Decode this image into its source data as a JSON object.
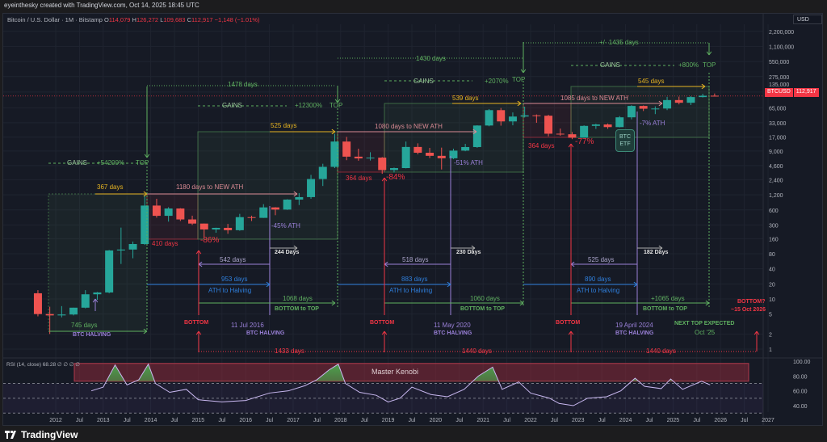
{
  "header": {
    "credit": "eyeinthesky created with TradingView.com, Oct 14, 2025 18:45 UTC"
  },
  "legend": {
    "symbol": "Bitcoin / U.S. Dollar · 1M · Bitstamp",
    "o_label": "O",
    "o": "114,079",
    "h_label": "H",
    "h": "126,272",
    "l_label": "L",
    "l": "109,683",
    "c_label": "C",
    "c": "112,917",
    "change": "−1,148 (−1.01%)"
  },
  "currency": "USD",
  "price_tag": {
    "symbol": "BTCUSD",
    "price": "112,917"
  },
  "rsi": {
    "title": "RSI (14, close) 68.28 ∅ ∅ ∅ ∅",
    "zone_label": "Master Kenobi",
    "axis": [
      "100.00",
      "80.00",
      "60.00",
      "40.00"
    ]
  },
  "footer": {
    "brand": "TradingView"
  },
  "colors": {
    "up": "#26a69a",
    "down": "#ef5350",
    "green": "#5fb060",
    "yellow": "#e6b422",
    "pink": "#d98a93",
    "red": "#f23645",
    "purple": "#9a80d8",
    "blue": "#2f7fdc",
    "rsi_line": "#c9b8f0"
  },
  "annotations": {
    "c1_gains": "GAINS",
    "c1_gain_pct": "+54200%",
    "c1_top": "TOP",
    "c1_cycle_days": "1478 days",
    "c1_run_days": "367 days",
    "c1_ath_days": "1180 days to NEW ATH",
    "c1_bear_days": "410 days",
    "c1_drawdown": "-86%",
    "c1_halving_days": "745 days",
    "c1_halving": "BTC HALVING",
    "c2_ath_pct": "-45% ATH",
    "c2_post_days": "244 Days",
    "c2_bottom_halving": "542 days",
    "c2_ath_halving_days": "953 days",
    "c2_ath_halving": "ATH to Halving",
    "c2_b2t_days": "1068 days",
    "c2_b2t": "BOTTOM to TOP",
    "c2_bottom": "BOTTOM",
    "c2_halving_date": "11 Jul 2016",
    "c2_halving": "BTC HALVING",
    "c2_bottom_days": "1433 days",
    "c2_gains": "GAINS",
    "c2_gain_pct": "+12300%",
    "c2_top": "TOP",
    "c2_run_days": "525 days",
    "c3_cycle_days": "1430 days",
    "c3_gains": "GAINS",
    "c3_gain_pct": "+2070%",
    "c3_top": "TOP",
    "c3_run_days": "539 days",
    "c3_ath_days": "1080 days to NEW ATH",
    "c3_bear_days": "364 days",
    "c3_drawdown": "-84%",
    "c3_ath_pct": "-51% ATH",
    "c3_post_days": "230 Days",
    "c3_bottom_halving": "518 days",
    "c3_ath_halving_days": "883 days",
    "c3_ath_halving": "ATH to Halving",
    "c3_b2t_days": "1060 days",
    "c3_b2t": "BOTTOM to TOP",
    "c3_bottom": "BOTTOM",
    "c3_halving_date": "11 May 2020",
    "c3_halving": "BTC HALVING",
    "c3_bottom_days": "1440 days",
    "c4_cycle_days": "+/- 1435 days",
    "c4_gains": "GAINS",
    "c4_gain_pct": "+800%",
    "c4_top": "TOP",
    "c4_run_days": "545 days",
    "c4_ath_days": "1085 days to NEW ATH",
    "c4_bear_days": "364 days",
    "c4_drawdown": "-77%",
    "c4_etf": "BTC ETF",
    "c4_ath_pct": "-7% ATH",
    "c4_post_days": "182 Days",
    "c4_bottom_halving": "525 days",
    "c4_ath_halving_days": "890 days",
    "c4_ath_halving": "ATH to Halving",
    "c4_b2t_days": "+1065 days",
    "c4_b2t": "BOTTOM to TOP",
    "c4_bottom": "BOTTOM",
    "c4_halving_date": "19 April 2024",
    "c4_halving": "BTC HALVING",
    "c4_next_top": "NEXT TOP EXPECTED",
    "c4_next_top_date": "Oct '25",
    "c4_bottom_days": "1440 days",
    "c5_bottom": "BOTTOM?",
    "c5_bottom_date": "~15 Oct 2026"
  },
  "chart_data": {
    "type": "candlestick",
    "title": "Bitcoin / U.S. Dollar · 1M · Bitstamp",
    "y_scale": "log",
    "ylim": [
      1,
      2200000
    ],
    "y_ticks": [
      "2,200,000",
      "1,100,000",
      "550,000",
      "275,000",
      "135,000",
      "65,000",
      "33,000",
      "17,000",
      "9,000",
      "4,600",
      "2,400",
      "1,200",
      "600",
      "300",
      "160",
      "80",
      "40",
      "20",
      "10",
      "5",
      "2",
      "1"
    ],
    "y_tick_values": [
      2200000,
      1100000,
      550000,
      275000,
      135000,
      65000,
      33000,
      17000,
      9000,
      4600,
      2400,
      1200,
      600,
      300,
      160,
      80,
      40,
      20,
      10,
      5,
      2,
      1
    ],
    "x_ticks": [
      "2012",
      "Jul",
      "2013",
      "Jul",
      "2014",
      "Jul",
      "2015",
      "Jul",
      "2016",
      "Jul",
      "2017",
      "Jul",
      "2018",
      "Jul",
      "2019",
      "Jul",
      "2020",
      "Jul",
      "2021",
      "Jul",
      "2022",
      "Jul",
      "2023",
      "Jul",
      "2024",
      "Jul",
      "2025",
      "Jul",
      "2026",
      "Jul",
      "2027"
    ],
    "xlim": [
      2011.4,
      2027.3
    ],
    "grid": true,
    "last_price": 112917,
    "candles": [
      {
        "t": "2011-Q3",
        "o": 13,
        "h": 15,
        "l": 4.5,
        "c": 5
      },
      {
        "t": "2011-Q4",
        "o": 5,
        "h": 7,
        "l": 2,
        "c": 4.7
      },
      {
        "t": "2012-Q1",
        "o": 4.7,
        "h": 7.2,
        "l": 4.3,
        "c": 4.9
      },
      {
        "t": "2012-Q2",
        "o": 4.9,
        "h": 6.7,
        "l": 4.7,
        "c": 6.7
      },
      {
        "t": "2012-Q3",
        "o": 6.7,
        "h": 15,
        "l": 6.5,
        "c": 12.4
      },
      {
        "t": "2012-Q4",
        "o": 12.4,
        "h": 13.8,
        "l": 9.6,
        "c": 13.5
      },
      {
        "t": "2013-Q1",
        "o": 13.5,
        "h": 95,
        "l": 13,
        "c": 93
      },
      {
        "t": "2013-Q2",
        "o": 93,
        "h": 266,
        "l": 50,
        "c": 97
      },
      {
        "t": "2013-Q3",
        "o": 97,
        "h": 140,
        "l": 65,
        "c": 125
      },
      {
        "t": "2013-Q4",
        "o": 125,
        "h": 1163,
        "l": 120,
        "c": 732
      },
      {
        "t": "2014-Q1",
        "o": 732,
        "h": 1000,
        "l": 420,
        "c": 457
      },
      {
        "t": "2014-Q2",
        "o": 457,
        "h": 680,
        "l": 350,
        "c": 640
      },
      {
        "t": "2014-Q3",
        "o": 640,
        "h": 650,
        "l": 360,
        "c": 387
      },
      {
        "t": "2014-Q4",
        "o": 387,
        "h": 460,
        "l": 300,
        "c": 320
      },
      {
        "t": "2015-Q1",
        "o": 320,
        "h": 320,
        "l": 170,
        "c": 244
      },
      {
        "t": "2015-Q2",
        "o": 244,
        "h": 265,
        "l": 210,
        "c": 263
      },
      {
        "t": "2015-Q3",
        "o": 263,
        "h": 315,
        "l": 200,
        "c": 236
      },
      {
        "t": "2015-Q4",
        "o": 236,
        "h": 500,
        "l": 230,
        "c": 430
      },
      {
        "t": "2016-Q1",
        "o": 430,
        "h": 460,
        "l": 360,
        "c": 416
      },
      {
        "t": "2016-Q2",
        "o": 416,
        "h": 780,
        "l": 415,
        "c": 673
      },
      {
        "t": "2016-Q3",
        "o": 673,
        "h": 680,
        "l": 470,
        "c": 609
      },
      {
        "t": "2016-Q4",
        "o": 609,
        "h": 980,
        "l": 600,
        "c": 963
      },
      {
        "t": "2017-Q1",
        "o": 963,
        "h": 1300,
        "l": 750,
        "c": 1080
      },
      {
        "t": "2017-Q2",
        "o": 1080,
        "h": 3000,
        "l": 1000,
        "c": 2480
      },
      {
        "t": "2017-Q3",
        "o": 2480,
        "h": 5000,
        "l": 1800,
        "c": 4340
      },
      {
        "t": "2017-Q4",
        "o": 4340,
        "h": 19800,
        "l": 4100,
        "c": 13880
      },
      {
        "t": "2018-Q1",
        "o": 13880,
        "h": 17200,
        "l": 5900,
        "c": 6930
      },
      {
        "t": "2018-Q2",
        "o": 6930,
        "h": 9990,
        "l": 5750,
        "c": 6400
      },
      {
        "t": "2018-Q3",
        "o": 6400,
        "h": 8500,
        "l": 5800,
        "c": 6630
      },
      {
        "t": "2018-Q4",
        "o": 6630,
        "h": 6800,
        "l": 3150,
        "c": 3740
      },
      {
        "t": "2019-Q1",
        "o": 3740,
        "h": 4200,
        "l": 3350,
        "c": 4100
      },
      {
        "t": "2019-Q2",
        "o": 4100,
        "h": 13880,
        "l": 4050,
        "c": 10820
      },
      {
        "t": "2019-Q3",
        "o": 10820,
        "h": 12800,
        "l": 7700,
        "c": 8300
      },
      {
        "t": "2019-Q4",
        "o": 8300,
        "h": 10370,
        "l": 6500,
        "c": 7200
      },
      {
        "t": "2020-Q1",
        "o": 7200,
        "h": 10500,
        "l": 3850,
        "c": 6430
      },
      {
        "t": "2020-Q2",
        "o": 6430,
        "h": 10000,
        "l": 6200,
        "c": 9150
      },
      {
        "t": "2020-Q3",
        "o": 9150,
        "h": 12480,
        "l": 8900,
        "c": 10780
      },
      {
        "t": "2020-Q4",
        "o": 10780,
        "h": 29300,
        "l": 10400,
        "c": 29000
      },
      {
        "t": "2021-Q1",
        "o": 29000,
        "h": 61800,
        "l": 28000,
        "c": 58800
      },
      {
        "t": "2021-Q2",
        "o": 58800,
        "h": 64900,
        "l": 28800,
        "c": 35000
      },
      {
        "t": "2021-Q3",
        "o": 35000,
        "h": 52900,
        "l": 29300,
        "c": 43800
      },
      {
        "t": "2021-Q4",
        "o": 43800,
        "h": 69000,
        "l": 42000,
        "c": 46300
      },
      {
        "t": "2022-Q1",
        "o": 46300,
        "h": 48200,
        "l": 32900,
        "c": 45500
      },
      {
        "t": "2022-Q2",
        "o": 45500,
        "h": 47400,
        "l": 17600,
        "c": 19900
      },
      {
        "t": "2022-Q3",
        "o": 19900,
        "h": 25200,
        "l": 18150,
        "c": 19400
      },
      {
        "t": "2022-Q4",
        "o": 19400,
        "h": 21500,
        "l": 15500,
        "c": 16550
      },
      {
        "t": "2023-Q1",
        "o": 16550,
        "h": 29200,
        "l": 16500,
        "c": 28500
      },
      {
        "t": "2023-Q2",
        "o": 28500,
        "h": 31400,
        "l": 24800,
        "c": 30450
      },
      {
        "t": "2023-Q3",
        "o": 30450,
        "h": 31800,
        "l": 24900,
        "c": 26970
      },
      {
        "t": "2023-Q4",
        "o": 26970,
        "h": 44700,
        "l": 26600,
        "c": 42280
      },
      {
        "t": "2024-Q1",
        "o": 42280,
        "h": 73800,
        "l": 38500,
        "c": 71300
      },
      {
        "t": "2024-Q2",
        "o": 71300,
        "h": 72800,
        "l": 56500,
        "c": 62700
      },
      {
        "t": "2024-Q3",
        "o": 62700,
        "h": 70000,
        "l": 49000,
        "c": 63300
      },
      {
        "t": "2024-Q4",
        "o": 63300,
        "h": 108300,
        "l": 58900,
        "c": 93400
      },
      {
        "t": "2025-Q1",
        "o": 93400,
        "h": 109300,
        "l": 76600,
        "c": 82500
      },
      {
        "t": "2025-Q2",
        "o": 82500,
        "h": 111900,
        "l": 74400,
        "c": 107200
      },
      {
        "t": "2025-Q3",
        "o": 107200,
        "h": 124500,
        "l": 105300,
        "c": 114080
      },
      {
        "t": "2025-Q4",
        "o": 114079,
        "h": 126272,
        "l": 109683,
        "c": 112917
      }
    ],
    "rsi_series": {
      "x": [
        2012.75,
        2013.0,
        2013.25,
        2013.5,
        2013.75,
        2013.95,
        2014.1,
        2014.4,
        2014.75,
        2015.0,
        2015.5,
        2016.0,
        2016.5,
        2016.9,
        2017.25,
        2017.5,
        2017.75,
        2017.95,
        2018.1,
        2018.4,
        2018.75,
        2019.0,
        2019.25,
        2019.5,
        2019.9,
        2020.25,
        2020.6,
        2020.9,
        2021.2,
        2021.4,
        2021.75,
        2022.0,
        2022.4,
        2022.6,
        2022.9,
        2023.2,
        2023.6,
        2023.9,
        2024.2,
        2024.4,
        2024.75,
        2024.95,
        2025.2,
        2025.6,
        2025.78
      ],
      "values": [
        60,
        65,
        95,
        68,
        75,
        96,
        70,
        58,
        62,
        48,
        45,
        47,
        57,
        60,
        67,
        75,
        88,
        96,
        70,
        58,
        54,
        45,
        50,
        65,
        55,
        52,
        62,
        80,
        92,
        62,
        72,
        57,
        50,
        43,
        40,
        50,
        52,
        60,
        77,
        66,
        63,
        76,
        62,
        73,
        68
      ],
      "ylim": [
        30,
        100
      ],
      "levels": [
        70,
        50,
        30
      ],
      "zone": [
        73,
        97
      ]
    }
  }
}
